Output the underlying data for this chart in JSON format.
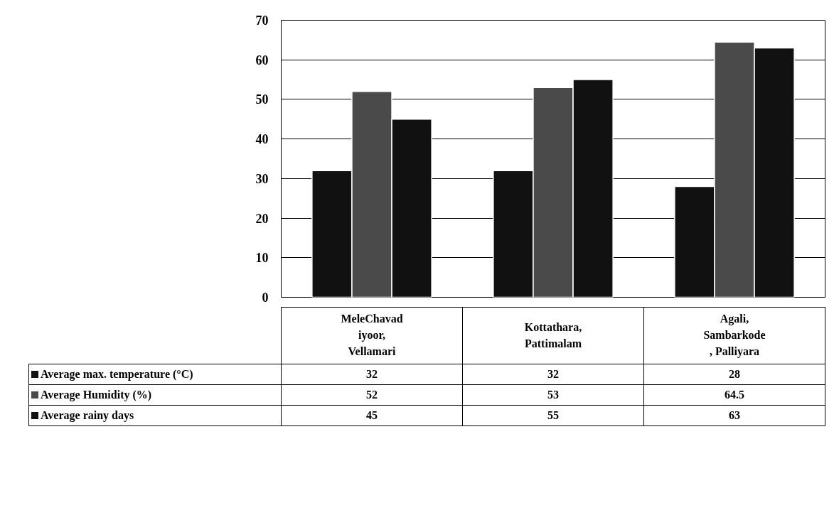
{
  "chart_data": {
    "type": "bar",
    "categories": [
      "MeleChavad\niyoor,\nVellamari",
      "Kottathara,\nPattimalam",
      "Agali,\nSambarkode\n, Palliyara"
    ],
    "series": [
      {
        "name": "Average max. temperature (°C)",
        "color": "#111111",
        "values": [
          32,
          32,
          28
        ]
      },
      {
        "name": "Average Humidity (%)",
        "color": "#4a4a4a",
        "values": [
          52,
          53,
          64.5
        ]
      },
      {
        "name": "Average rainy days",
        "color": "#111111",
        "values": [
          45,
          55,
          63
        ]
      }
    ],
    "ylim": [
      0,
      70
    ],
    "yticks": [
      0,
      10,
      20,
      30,
      40,
      50,
      60,
      70
    ],
    "grid": "y",
    "data_labels": true,
    "legend": "bottom"
  }
}
